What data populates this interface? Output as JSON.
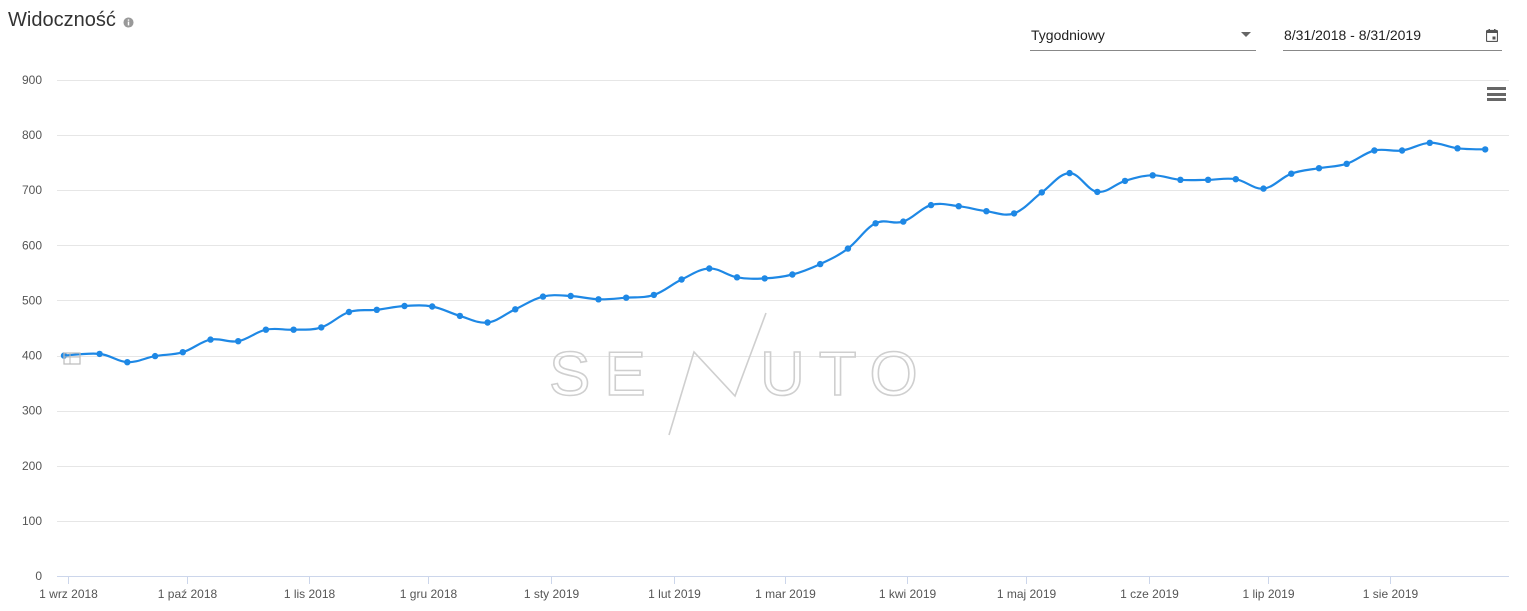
{
  "header": {
    "title": "Widoczność",
    "info_icon": "info-icon",
    "period_select": {
      "value": "Tygodniowy",
      "icon": "chevron-down-icon"
    },
    "date_range": {
      "value": "8/31/2018 - 8/31/2019",
      "icon": "calendar-icon"
    },
    "menu_icon": "hamburger-menu-icon"
  },
  "watermark": {
    "text_left": "SE",
    "text_right": "UTO"
  },
  "colors": {
    "line": "#1e88e5",
    "grid": "#e6e6e6",
    "axis": "#ccd6eb"
  },
  "chart_data": {
    "type": "line",
    "title": "Widoczność",
    "xlabel": "",
    "ylabel": "",
    "ylim": [
      0,
      900
    ],
    "y_ticks": [
      0,
      100,
      200,
      300,
      400,
      500,
      600,
      700,
      800,
      900
    ],
    "x_range": [
      "2018-08-31",
      "2019-08-31"
    ],
    "x_ticks": [
      {
        "date": "2018-09-01",
        "label": "1 wrz 2018"
      },
      {
        "date": "2018-10-01",
        "label": "1 paź 2018"
      },
      {
        "date": "2018-11-01",
        "label": "1 lis 2018"
      },
      {
        "date": "2018-12-01",
        "label": "1 gru 2018"
      },
      {
        "date": "2019-01-01",
        "label": "1 sty 2019"
      },
      {
        "date": "2019-02-01",
        "label": "1 lut 2019"
      },
      {
        "date": "2019-03-01",
        "label": "1 mar 2019"
      },
      {
        "date": "2019-04-01",
        "label": "1 kwi 2019"
      },
      {
        "date": "2019-05-01",
        "label": "1 maj 2019"
      },
      {
        "date": "2019-06-01",
        "label": "1 cze 2019"
      },
      {
        "date": "2019-07-01",
        "label": "1 lip 2019"
      },
      {
        "date": "2019-08-01",
        "label": "1 sie 2019"
      }
    ],
    "grid": true,
    "legend": "none",
    "series": [
      {
        "x": [
          "2018-08-31",
          "2018-09-09",
          "2018-09-16",
          "2018-09-23",
          "2018-09-30",
          "2018-10-07",
          "2018-10-14",
          "2018-10-21",
          "2018-10-28",
          "2018-11-04",
          "2018-11-11",
          "2018-11-18",
          "2018-11-25",
          "2018-12-02",
          "2018-12-09",
          "2018-12-16",
          "2018-12-23",
          "2018-12-30",
          "2019-01-06",
          "2019-01-13",
          "2019-01-20",
          "2019-01-27",
          "2019-02-03",
          "2019-02-10",
          "2019-02-17",
          "2019-02-24",
          "2019-03-03",
          "2019-03-10",
          "2019-03-17",
          "2019-03-24",
          "2019-03-31",
          "2019-04-07",
          "2019-04-14",
          "2019-04-21",
          "2019-04-28",
          "2019-05-05",
          "2019-05-12",
          "2019-05-19",
          "2019-05-26",
          "2019-06-02",
          "2019-06-09",
          "2019-06-16",
          "2019-06-23",
          "2019-06-30",
          "2019-07-07",
          "2019-07-14",
          "2019-07-21",
          "2019-07-28",
          "2019-08-04",
          "2019-08-11",
          "2019-08-18",
          "2019-08-25"
        ],
        "values": [
          400,
          403,
          388,
          399,
          406,
          429,
          426,
          447,
          447,
          451,
          479,
          483,
          490,
          489,
          472,
          460,
          484,
          507,
          508,
          502,
          505,
          510,
          538,
          558,
          542,
          540,
          547,
          566,
          594,
          640,
          643,
          673,
          671,
          662,
          658,
          696,
          731,
          697,
          717,
          727,
          719,
          719,
          720,
          703,
          730,
          740,
          748,
          772,
          772,
          786,
          776,
          774
        ]
      }
    ]
  }
}
